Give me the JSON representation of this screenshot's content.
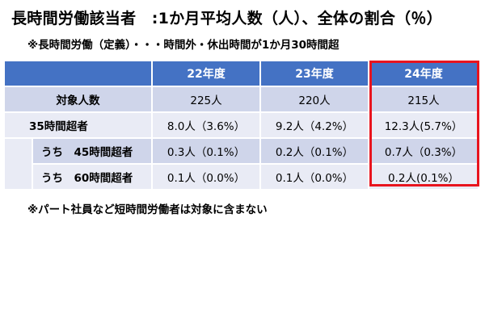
{
  "title": "長時間労働該当者　:1か月平均人数（人）、全体の割合（％）",
  "note_top": "※長時間労働（定義）・・・時間外・休出時間が1か月30時間超",
  "note_bottom": "※パート社員など短時間労働者は対象に含まない",
  "table": {
    "columns": [
      "",
      "22年度",
      "23年度",
      "24年度"
    ],
    "rows": [
      {
        "label": "対象人数",
        "cells": [
          "225人",
          "220人",
          "215人"
        ]
      },
      {
        "label": "35時間超者",
        "cells": [
          "8.0人（3.6%）",
          "9.2人（4.2%）",
          "12.3人(5.7%）"
        ]
      },
      {
        "label": "うち　45時間超者",
        "cells": [
          "0.3人（0.1%）",
          "0.2人（0.1%）",
          "0.7人（0.3%）"
        ]
      },
      {
        "label": "うち　60時間超者",
        "cells": [
          "0.1人（0.0%）",
          "0.1人（0.0%）",
          "0.2人(0.1%）"
        ]
      }
    ]
  },
  "highlight_color": "#e8141e",
  "header_color": "#4472c4"
}
